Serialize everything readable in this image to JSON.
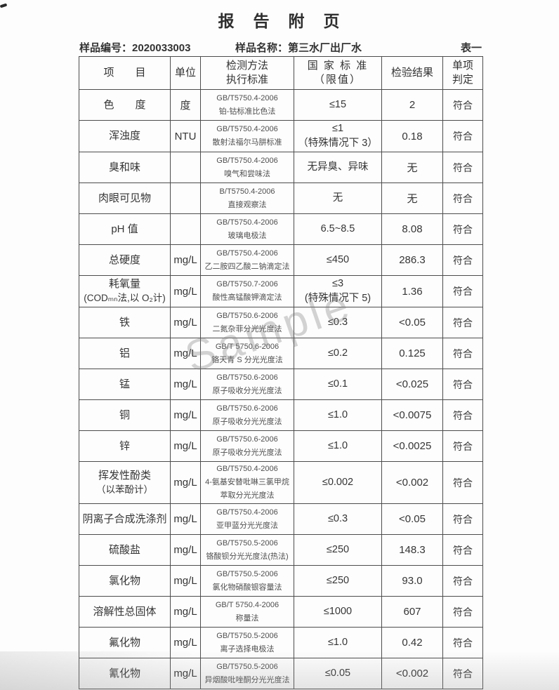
{
  "page": {
    "title": "报　告　附　页",
    "sample_no_label": "样品编号：",
    "sample_no": "2020033003",
    "sample_name_label": "样品名称：",
    "sample_name": "第三水厂出厂水",
    "table_label": "表一",
    "watermark": "Sample"
  },
  "table": {
    "headers": {
      "item": "项　　目",
      "unit": "单位",
      "method": [
        "检测方法",
        "执行标准"
      ],
      "standard": [
        "国 家 标 准",
        "（限值）"
      ],
      "result": "检验结果",
      "judgment": [
        "单项",
        "判定"
      ]
    },
    "rows": [
      {
        "item": [
          "色　　度"
        ],
        "unit": "度",
        "method": [
          "GB/T5750.4-2006",
          "铂-钴标准比色法"
        ],
        "standard": [
          "≤15"
        ],
        "result": "2",
        "judgment": "符合"
      },
      {
        "item": [
          "浑浊度"
        ],
        "unit": "NTU",
        "method": [
          "GB/T5750.4-2006",
          "散射法福尔马肼标准"
        ],
        "standard": [
          "≤1",
          "（特殊情况下 3）"
        ],
        "result": "0.18",
        "judgment": "符合"
      },
      {
        "item": [
          "臭和味"
        ],
        "unit": "",
        "method": [
          "GB/T5750.4-2006",
          "嗅气和尝味法"
        ],
        "standard": [
          "无异臭、异味"
        ],
        "result": "无",
        "judgment": "符合"
      },
      {
        "item": [
          "肉眼可见物"
        ],
        "unit": "",
        "method": [
          "B/T5750.4-2006",
          "直接观察法"
        ],
        "standard": [
          "无"
        ],
        "result": "无",
        "judgment": "符合"
      },
      {
        "item": [
          "pH 值"
        ],
        "unit": "",
        "method": [
          "GB/T5750.4-2006",
          "玻璃电极法"
        ],
        "standard": [
          "6.5~8.5"
        ],
        "result": "8.08",
        "judgment": "符合"
      },
      {
        "item": [
          "总硬度"
        ],
        "unit": "mg/L",
        "method": [
          "GB/T5750.4-2006",
          "乙二胺四乙酸二钠滴定法"
        ],
        "standard": [
          "≤450"
        ],
        "result": "286.3",
        "judgment": "符合"
      },
      {
        "item": [
          "耗氧量",
          "(CODₘₙ法,以 O₂计)"
        ],
        "unit": "mg/L",
        "method": [
          "GB/T5750.7-2006",
          "酸性高锰酸钾滴定法"
        ],
        "standard": [
          "≤3",
          "(特殊情况下 5)"
        ],
        "result": "1.36",
        "judgment": "符合"
      },
      {
        "item": [
          "铁"
        ],
        "unit": "mg/L",
        "method": [
          "GB/T5750.6-2006",
          "二氮杂菲分光光度法"
        ],
        "standard": [
          "≤0.3"
        ],
        "result": "<0.05",
        "judgment": "符合"
      },
      {
        "item": [
          "铝"
        ],
        "unit": "mg/L",
        "method": [
          "GB/T 5750.6-2006",
          "铬天青 S 分光光度法"
        ],
        "standard": [
          "≤0.2"
        ],
        "result": "0.125",
        "judgment": "符合"
      },
      {
        "item": [
          "锰"
        ],
        "unit": "mg/L",
        "method": [
          "GB/T5750.6-2006",
          "原子吸收分光光度法"
        ],
        "standard": [
          "≤0.1"
        ],
        "result": "<0.025",
        "judgment": "符合"
      },
      {
        "item": [
          "铜"
        ],
        "unit": "mg/L",
        "method": [
          "GB/T5750.6-2006",
          "原子吸收分光光度法"
        ],
        "standard": [
          "≤1.0"
        ],
        "result": "<0.0075",
        "judgment": "符合"
      },
      {
        "item": [
          "锌"
        ],
        "unit": "mg/L",
        "method": [
          "GB/T5750.6-2006",
          "原子吸收分光光度法"
        ],
        "standard": [
          "≤1.0"
        ],
        "result": "<0.0025",
        "judgment": "符合"
      },
      {
        "item": [
          "挥发性酚类",
          "（以苯酚计）"
        ],
        "unit": "mg/L",
        "method": [
          "GB/T5750.4-2006",
          "4-氨基安替吡啉三氯甲烷",
          "萃取分光光度法"
        ],
        "standard": [
          "≤0.002"
        ],
        "result": "<0.002",
        "judgment": "符合"
      },
      {
        "item": [
          "阴离子合成洗涤剂"
        ],
        "unit": "mg/L",
        "method": [
          "GB/T5750.4-2006",
          "亚甲蓝分光光度法"
        ],
        "standard": [
          "≤0.3"
        ],
        "result": "<0.05",
        "judgment": "符合"
      },
      {
        "item": [
          "硫酸盐"
        ],
        "unit": "mg/L",
        "method": [
          "GB/T5750.5-2006",
          "铬酸钡分光光度法(热法)"
        ],
        "standard": [
          "≤250"
        ],
        "result": "148.3",
        "judgment": "符合"
      },
      {
        "item": [
          "氯化物"
        ],
        "unit": "mg/L",
        "method": [
          "GB/T5750.5-2006",
          "氯化物硝酸银容量法"
        ],
        "standard": [
          "≤250"
        ],
        "result": "93.0",
        "judgment": "符合"
      },
      {
        "item": [
          "溶解性总固体"
        ],
        "unit": "mg/L",
        "method": [
          "GB/T 5750.4-2006",
          "称量法"
        ],
        "standard": [
          "≤1000"
        ],
        "result": "607",
        "judgment": "符合"
      },
      {
        "item": [
          "氟化物"
        ],
        "unit": "mg/L",
        "method": [
          "GB/T5750.5-2006",
          "离子选择电极法"
        ],
        "standard": [
          "≤1.0"
        ],
        "result": "0.42",
        "judgment": "符合"
      },
      {
        "item": [
          "氰化物"
        ],
        "unit": "mg/L",
        "method": [
          "GB/T5750.5-2006",
          "异烟酸吡唑酮分光光度法"
        ],
        "standard": [
          "≤0.05"
        ],
        "result": "<0.002",
        "judgment": "符合"
      }
    ]
  }
}
